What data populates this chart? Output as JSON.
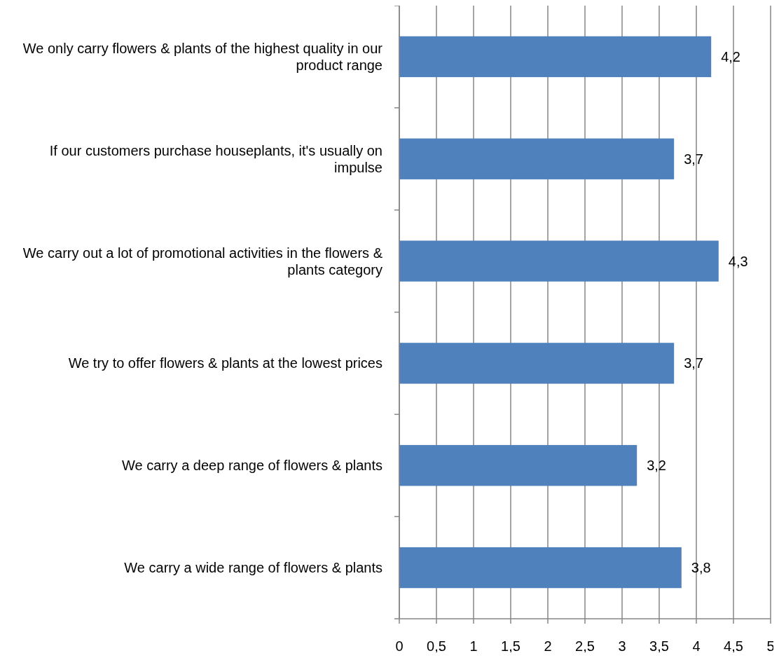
{
  "chart_data": {
    "type": "bar",
    "orientation": "horizontal",
    "categories": [
      "We only carry flowers & plants of the highest quality in our product range",
      "If our customers purchase houseplants, it's usually on impulse",
      "We carry out a lot of promotional activities in the flowers & plants category",
      "We try to offer flowers & plants at the lowest prices",
      "We carry a deep range of flowers & plants",
      "We carry a wide range of flowers & plants"
    ],
    "values": [
      4.2,
      3.7,
      4.3,
      3.7,
      3.2,
      3.8
    ],
    "value_labels": [
      "4,2",
      "3,7",
      "4,3",
      "3,7",
      "3,2",
      "3,8"
    ],
    "color": "#4f81bd",
    "xlim": [
      0,
      5
    ],
    "xticks": [
      0,
      {
        "value": 0.5,
        "label": "0,5"
      },
      1,
      {
        "value": 1.5,
        "label": "1,5"
      },
      2,
      {
        "value": 2.5,
        "label": "2,5"
      },
      3,
      {
        "value": 3.5,
        "label": "3,5"
      },
      4,
      {
        "value": 4.5,
        "label": "4,5"
      },
      5
    ],
    "grid": "x"
  }
}
